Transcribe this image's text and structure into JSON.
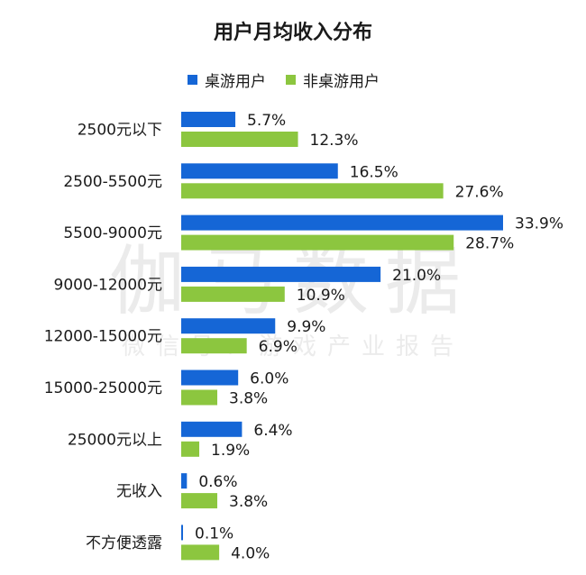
{
  "title": "用户月均收入分布",
  "watermark": {
    "main": "伽马数据",
    "sub": "微信号：游戏产业报告"
  },
  "colors": {
    "series_a": "#1566d6",
    "series_b": "#8cc63f"
  },
  "chart_data": {
    "type": "bar",
    "orientation": "horizontal",
    "title": "用户月均收入分布",
    "categories": [
      "2500元以下",
      "2500-5500元",
      "5500-9000元",
      "9000-12000元",
      "12000-15000元",
      "15000-25000元",
      "25000元以上",
      "无收入",
      "不方便透露"
    ],
    "series": [
      {
        "name": "桌游用户",
        "values": [
          5.7,
          16.5,
          33.9,
          21.0,
          9.9,
          6.0,
          6.4,
          0.6,
          0.1
        ],
        "labels": [
          "5.7%",
          "16.5%",
          "33.9%",
          "21.0%",
          "9.9%",
          "6.0%",
          "6.4%",
          "0.6%",
          "0.1%"
        ],
        "color": "#1566d6"
      },
      {
        "name": "非桌游用户",
        "values": [
          12.3,
          27.6,
          28.7,
          10.9,
          6.9,
          3.8,
          1.9,
          3.8,
          4.0
        ],
        "labels": [
          "12.3%",
          "27.6%",
          "28.7%",
          "10.9%",
          "6.9%",
          "3.8%",
          "1.9%",
          "3.8%",
          "4.0%"
        ],
        "color": "#8cc63f"
      }
    ],
    "value_unit": "%",
    "xlim": [
      0,
      33.9
    ],
    "grid": false,
    "legend_position": "top"
  }
}
